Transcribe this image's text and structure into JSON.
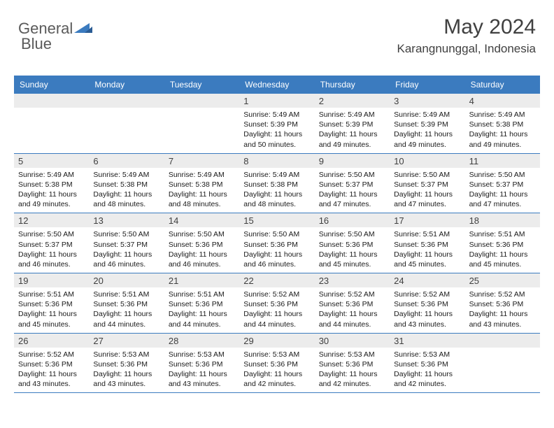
{
  "brand": {
    "word1": "General",
    "word2": "Blue"
  },
  "title": "May 2024",
  "location": "Karangnunggal, Indonesia",
  "colors": {
    "accent": "#3b7bbf",
    "header_text": "#ffffff",
    "daynum_bg": "#ececec",
    "text": "#1a1a1a",
    "title_color": "#404040",
    "logo_gray": "#5a5a5a"
  },
  "day_names": [
    "Sunday",
    "Monday",
    "Tuesday",
    "Wednesday",
    "Thursday",
    "Friday",
    "Saturday"
  ],
  "weeks": [
    [
      null,
      null,
      null,
      {
        "n": "1",
        "sr": "5:49 AM",
        "ss": "5:39 PM",
        "dl": "11 hours and 50 minutes."
      },
      {
        "n": "2",
        "sr": "5:49 AM",
        "ss": "5:39 PM",
        "dl": "11 hours and 49 minutes."
      },
      {
        "n": "3",
        "sr": "5:49 AM",
        "ss": "5:39 PM",
        "dl": "11 hours and 49 minutes."
      },
      {
        "n": "4",
        "sr": "5:49 AM",
        "ss": "5:38 PM",
        "dl": "11 hours and 49 minutes."
      }
    ],
    [
      {
        "n": "5",
        "sr": "5:49 AM",
        "ss": "5:38 PM",
        "dl": "11 hours and 49 minutes."
      },
      {
        "n": "6",
        "sr": "5:49 AM",
        "ss": "5:38 PM",
        "dl": "11 hours and 48 minutes."
      },
      {
        "n": "7",
        "sr": "5:49 AM",
        "ss": "5:38 PM",
        "dl": "11 hours and 48 minutes."
      },
      {
        "n": "8",
        "sr": "5:49 AM",
        "ss": "5:38 PM",
        "dl": "11 hours and 48 minutes."
      },
      {
        "n": "9",
        "sr": "5:50 AM",
        "ss": "5:37 PM",
        "dl": "11 hours and 47 minutes."
      },
      {
        "n": "10",
        "sr": "5:50 AM",
        "ss": "5:37 PM",
        "dl": "11 hours and 47 minutes."
      },
      {
        "n": "11",
        "sr": "5:50 AM",
        "ss": "5:37 PM",
        "dl": "11 hours and 47 minutes."
      }
    ],
    [
      {
        "n": "12",
        "sr": "5:50 AM",
        "ss": "5:37 PM",
        "dl": "11 hours and 46 minutes."
      },
      {
        "n": "13",
        "sr": "5:50 AM",
        "ss": "5:37 PM",
        "dl": "11 hours and 46 minutes."
      },
      {
        "n": "14",
        "sr": "5:50 AM",
        "ss": "5:36 PM",
        "dl": "11 hours and 46 minutes."
      },
      {
        "n": "15",
        "sr": "5:50 AM",
        "ss": "5:36 PM",
        "dl": "11 hours and 46 minutes."
      },
      {
        "n": "16",
        "sr": "5:50 AM",
        "ss": "5:36 PM",
        "dl": "11 hours and 45 minutes."
      },
      {
        "n": "17",
        "sr": "5:51 AM",
        "ss": "5:36 PM",
        "dl": "11 hours and 45 minutes."
      },
      {
        "n": "18",
        "sr": "5:51 AM",
        "ss": "5:36 PM",
        "dl": "11 hours and 45 minutes."
      }
    ],
    [
      {
        "n": "19",
        "sr": "5:51 AM",
        "ss": "5:36 PM",
        "dl": "11 hours and 45 minutes."
      },
      {
        "n": "20",
        "sr": "5:51 AM",
        "ss": "5:36 PM",
        "dl": "11 hours and 44 minutes."
      },
      {
        "n": "21",
        "sr": "5:51 AM",
        "ss": "5:36 PM",
        "dl": "11 hours and 44 minutes."
      },
      {
        "n": "22",
        "sr": "5:52 AM",
        "ss": "5:36 PM",
        "dl": "11 hours and 44 minutes."
      },
      {
        "n": "23",
        "sr": "5:52 AM",
        "ss": "5:36 PM",
        "dl": "11 hours and 44 minutes."
      },
      {
        "n": "24",
        "sr": "5:52 AM",
        "ss": "5:36 PM",
        "dl": "11 hours and 43 minutes."
      },
      {
        "n": "25",
        "sr": "5:52 AM",
        "ss": "5:36 PM",
        "dl": "11 hours and 43 minutes."
      }
    ],
    [
      {
        "n": "26",
        "sr": "5:52 AM",
        "ss": "5:36 PM",
        "dl": "11 hours and 43 minutes."
      },
      {
        "n": "27",
        "sr": "5:53 AM",
        "ss": "5:36 PM",
        "dl": "11 hours and 43 minutes."
      },
      {
        "n": "28",
        "sr": "5:53 AM",
        "ss": "5:36 PM",
        "dl": "11 hours and 43 minutes."
      },
      {
        "n": "29",
        "sr": "5:53 AM",
        "ss": "5:36 PM",
        "dl": "11 hours and 42 minutes."
      },
      {
        "n": "30",
        "sr": "5:53 AM",
        "ss": "5:36 PM",
        "dl": "11 hours and 42 minutes."
      },
      {
        "n": "31",
        "sr": "5:53 AM",
        "ss": "5:36 PM",
        "dl": "11 hours and 42 minutes."
      },
      null
    ]
  ],
  "labels": {
    "sunrise": "Sunrise: ",
    "sunset": "Sunset: ",
    "daylight": "Daylight: "
  }
}
